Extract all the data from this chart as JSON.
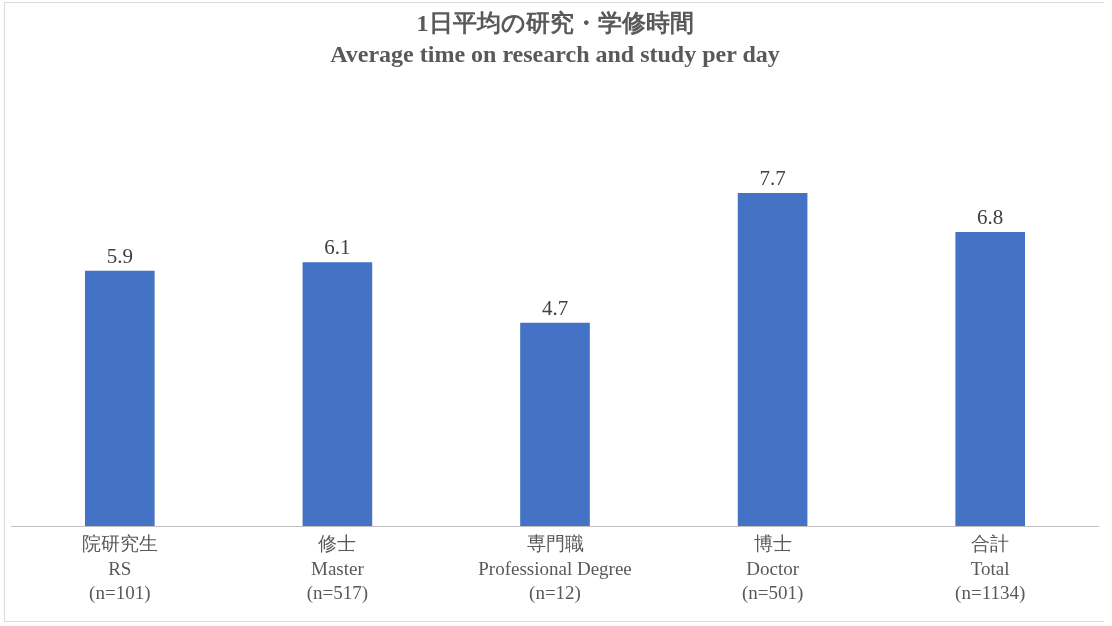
{
  "chart_data": {
    "type": "bar",
    "title": "1日平均の研究・学修時間\nAverage time on research and study per day",
    "categories": [
      "院研究生\nRS\n(n=101)",
      "修士\nMaster\n(n=517)",
      "専門職\nProfessional Degree\n(n=12)",
      "博士\nDoctor\n(n=501)",
      "合計\nTotal\n(n=1134)"
    ],
    "values": [
      5.9,
      6.1,
      4.7,
      7.7,
      6.8
    ],
    "color": "#4472c4",
    "data_labels": true
  }
}
